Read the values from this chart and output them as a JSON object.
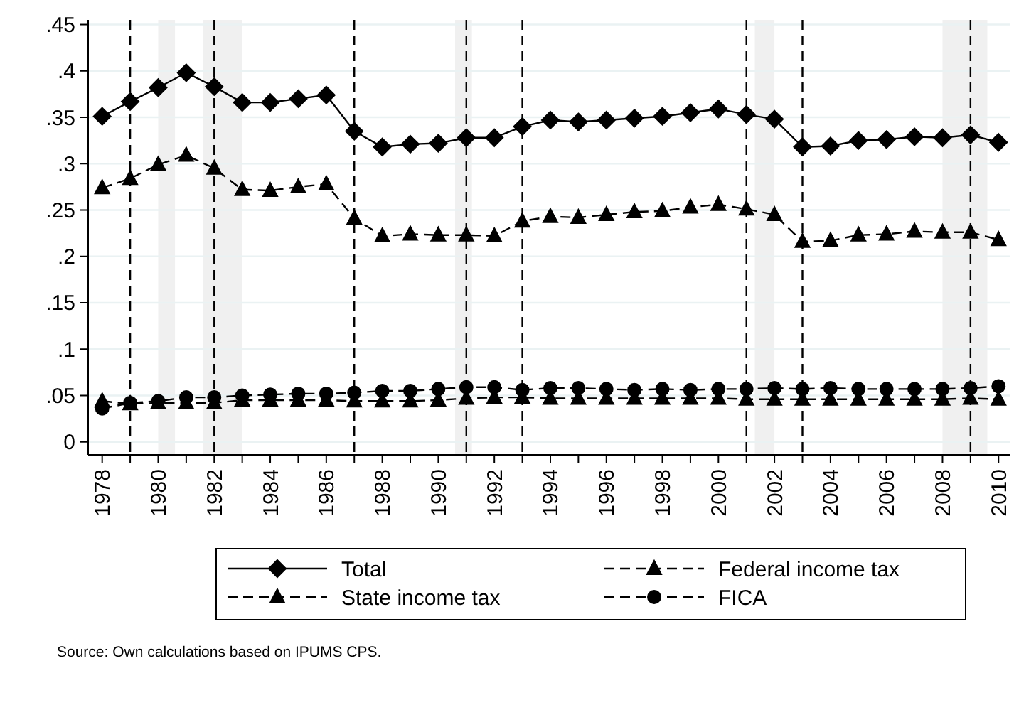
{
  "chart_data": {
    "type": "line",
    "x": [
      1978,
      1979,
      1980,
      1981,
      1982,
      1983,
      1984,
      1985,
      1986,
      1987,
      1988,
      1989,
      1990,
      1991,
      1992,
      1993,
      1994,
      1995,
      1996,
      1997,
      1998,
      1999,
      2000,
      2001,
      2002,
      2003,
      2004,
      2005,
      2006,
      2007,
      2008,
      2009,
      2010
    ],
    "series": [
      {
        "name": "Total",
        "color": "#000000",
        "marker": "diamond",
        "line_style": "solid",
        "values": [
          0.351,
          0.367,
          0.382,
          0.398,
          0.383,
          0.366,
          0.366,
          0.37,
          0.374,
          0.335,
          0.318,
          0.321,
          0.322,
          0.328,
          0.328,
          0.34,
          0.347,
          0.345,
          0.347,
          0.349,
          0.351,
          0.355,
          0.359,
          0.353,
          0.348,
          0.318,
          0.319,
          0.325,
          0.326,
          0.329,
          0.328,
          0.331,
          0.323
        ]
      },
      {
        "name": "Federal income tax",
        "color": "#000000",
        "marker": "triangle",
        "line_style": "dashed",
        "values": [
          0.274,
          0.284,
          0.299,
          0.309,
          0.295,
          0.272,
          0.271,
          0.275,
          0.278,
          0.241,
          0.222,
          0.224,
          0.223,
          0.223,
          0.222,
          0.238,
          0.243,
          0.242,
          0.245,
          0.248,
          0.249,
          0.253,
          0.256,
          0.251,
          0.245,
          0.216,
          0.217,
          0.223,
          0.224,
          0.227,
          0.226,
          0.226,
          0.218
        ]
      },
      {
        "name": "State income tax",
        "color": "#000000",
        "marker": "triangle",
        "line_style": "dashed",
        "values": [
          0.044,
          0.041,
          0.042,
          0.042,
          0.042,
          0.045,
          0.045,
          0.045,
          0.045,
          0.044,
          0.044,
          0.044,
          0.045,
          0.047,
          0.048,
          0.048,
          0.047,
          0.047,
          0.047,
          0.047,
          0.047,
          0.047,
          0.047,
          0.046,
          0.046,
          0.046,
          0.046,
          0.046,
          0.046,
          0.046,
          0.046,
          0.047,
          0.046
        ]
      },
      {
        "name": "FICA",
        "color": "#000000",
        "marker": "circle",
        "line_style": "dashed",
        "values": [
          0.036,
          0.042,
          0.044,
          0.048,
          0.048,
          0.05,
          0.051,
          0.052,
          0.052,
          0.053,
          0.055,
          0.055,
          0.057,
          0.059,
          0.059,
          0.056,
          0.058,
          0.058,
          0.057,
          0.056,
          0.057,
          0.056,
          0.057,
          0.057,
          0.058,
          0.057,
          0.058,
          0.057,
          0.057,
          0.057,
          0.057,
          0.058,
          0.06
        ]
      }
    ],
    "xlim": [
      1977.5,
      2010.4
    ],
    "xticks": [
      1978,
      {
        "value": 1979,
        "label": null
      },
      1980,
      {
        "value": 1981,
        "label": null
      },
      1982,
      {
        "value": 1983,
        "label": null
      },
      1984,
      {
        "value": 1985,
        "label": null
      },
      1986,
      {
        "value": 1987,
        "label": null
      },
      1988,
      {
        "value": 1989,
        "label": null
      },
      1990,
      {
        "value": 1991,
        "label": null
      },
      1992,
      {
        "value": 1993,
        "label": null
      },
      1994,
      {
        "value": 1995,
        "label": null
      },
      1996,
      {
        "value": 1997,
        "label": null
      },
      1998,
      {
        "value": 1999,
        "label": null
      },
      2000,
      {
        "value": 2001,
        "label": null
      },
      2002,
      {
        "value": 2003,
        "label": null
      },
      2004,
      {
        "value": 2005,
        "label": null
      },
      2006,
      {
        "value": 2007,
        "label": null
      },
      2008,
      {
        "value": 2009,
        "label": null
      },
      2010
    ],
    "ylim": [
      -0.014,
      0.455
    ],
    "yticks": [
      {
        "value": 0,
        "label": "0"
      },
      {
        "value": 0.05,
        "label": ".05"
      },
      {
        "value": 0.1,
        "label": ".1"
      },
      {
        "value": 0.15,
        "label": ".15"
      },
      {
        "value": 0.2,
        "label": ".2"
      },
      {
        "value": 0.25,
        "label": ".25"
      },
      {
        "value": 0.3,
        "label": ".3"
      },
      {
        "value": 0.35,
        "label": ".35"
      },
      {
        "value": 0.4,
        "label": ".4"
      },
      {
        "value": 0.45,
        "label": ".45"
      }
    ],
    "grid": "y",
    "legend": "bottom",
    "ref_lines": [
      {
        "axis": "x",
        "value": 1979,
        "line_style": "dashed"
      },
      {
        "axis": "x",
        "value": 1982,
        "line_style": "dashed"
      },
      {
        "axis": "x",
        "value": 1987,
        "line_style": "dashed"
      },
      {
        "axis": "x",
        "value": 1991,
        "line_style": "dashed"
      },
      {
        "axis": "x",
        "value": 1993,
        "line_style": "dashed"
      },
      {
        "axis": "x",
        "value": 2001,
        "line_style": "dashed"
      },
      {
        "axis": "x",
        "value": 2003,
        "line_style": "dashed"
      },
      {
        "axis": "x",
        "value": 2009,
        "line_style": "dashed"
      }
    ],
    "bands": [
      {
        "axis": "x",
        "from": 1980.0,
        "to": 1980.6,
        "color": "#f0f0f0"
      },
      {
        "axis": "x",
        "from": 1981.6,
        "to": 1983.0,
        "color": "#f0f0f0"
      },
      {
        "axis": "x",
        "from": 1990.6,
        "to": 1991.2,
        "color": "#f0f0f0"
      },
      {
        "axis": "x",
        "from": 2001.3,
        "to": 2002.0,
        "color": "#f0f0f0"
      },
      {
        "axis": "x",
        "from": 2008.0,
        "to": 2009.6,
        "color": "#f0f0f0"
      }
    ],
    "annotations": [
      "Source: Own calculations based on IPUMS CPS."
    ]
  }
}
